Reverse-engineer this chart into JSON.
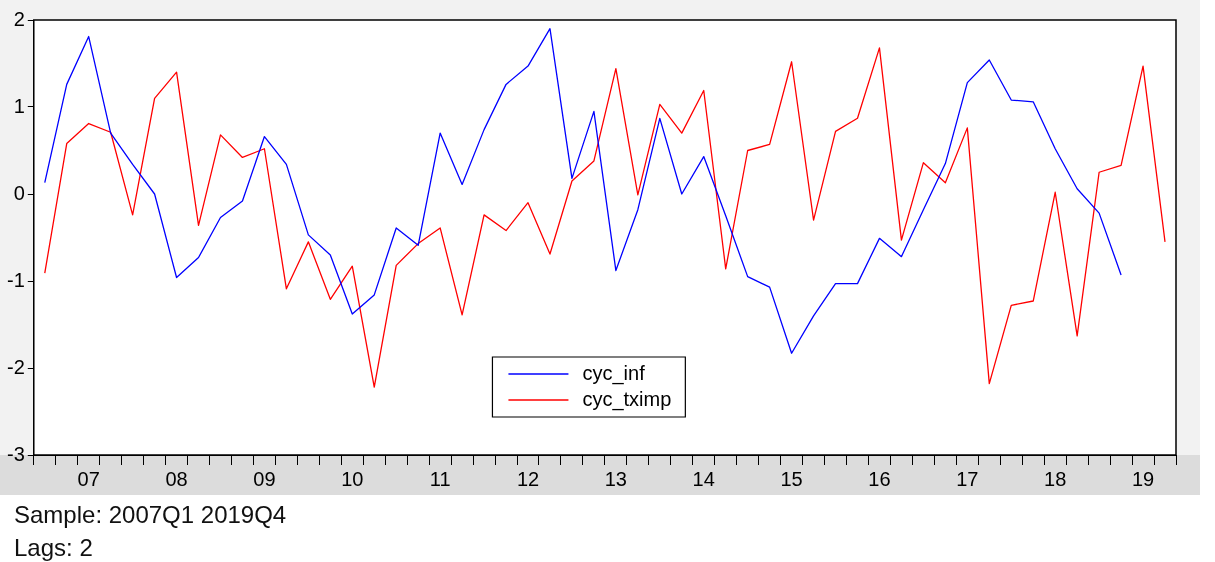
{
  "chart_data": {
    "type": "line",
    "categories": [
      null,
      null,
      "07",
      null,
      null,
      null,
      "08",
      null,
      null,
      null,
      "09",
      null,
      null,
      null,
      "10",
      null,
      null,
      null,
      "11",
      null,
      null,
      null,
      "12",
      null,
      null,
      null,
      "13",
      null,
      null,
      null,
      "14",
      null,
      null,
      null,
      "15",
      null,
      null,
      null,
      "16",
      null,
      null,
      null,
      "17",
      null,
      null,
      null,
      "18",
      null,
      null,
      null,
      "19",
      null
    ],
    "series": [
      {
        "name": "cyc_inf",
        "color": "#0000ff",
        "values": [
          0.13,
          1.26,
          1.81,
          0.7,
          0.34,
          0.0,
          -0.96,
          -0.73,
          -0.27,
          -0.08,
          0.66,
          0.34,
          -0.47,
          -0.7,
          -1.38,
          -1.16,
          -0.39,
          -0.59,
          0.7,
          0.11,
          0.74,
          1.26,
          1.47,
          1.9,
          0.18,
          0.95,
          -0.88,
          -0.18,
          0.87,
          0.0,
          0.43,
          -0.25,
          -0.95,
          -1.07,
          -1.83,
          -1.4,
          -1.03,
          -1.03,
          -0.51,
          -0.72,
          -0.18,
          0.35,
          1.28,
          1.54,
          1.08,
          1.06,
          0.52,
          0.06,
          -0.22,
          -0.93,
          null,
          null
        ]
      },
      {
        "name": "cyc_tximp",
        "color": "#ff0000",
        "values": [
          -0.91,
          0.58,
          0.81,
          0.71,
          -0.24,
          1.1,
          1.4,
          -0.36,
          0.68,
          0.42,
          0.52,
          -1.09,
          -0.55,
          -1.21,
          -0.83,
          -2.22,
          -0.82,
          -0.57,
          -0.39,
          -1.39,
          -0.24,
          -0.42,
          -0.1,
          -0.69,
          0.15,
          0.38,
          1.44,
          -0.01,
          1.03,
          0.7,
          1.19,
          -0.86,
          0.5,
          0.57,
          1.52,
          -0.3,
          0.72,
          0.87,
          1.68,
          -0.53,
          0.36,
          0.13,
          0.76,
          -2.18,
          -1.28,
          -1.23,
          0.02,
          -1.63,
          0.25,
          0.33,
          1.47,
          -0.55
        ]
      }
    ],
    "ylim": [
      -3,
      2
    ],
    "yticks": [
      -3,
      -2,
      -1,
      0,
      1,
      2
    ],
    "legend": "bottom",
    "marker": "none",
    "line_style": "solid",
    "annotations": [
      "Sample: 2007Q1 2019Q4",
      "Lags: 2"
    ]
  }
}
